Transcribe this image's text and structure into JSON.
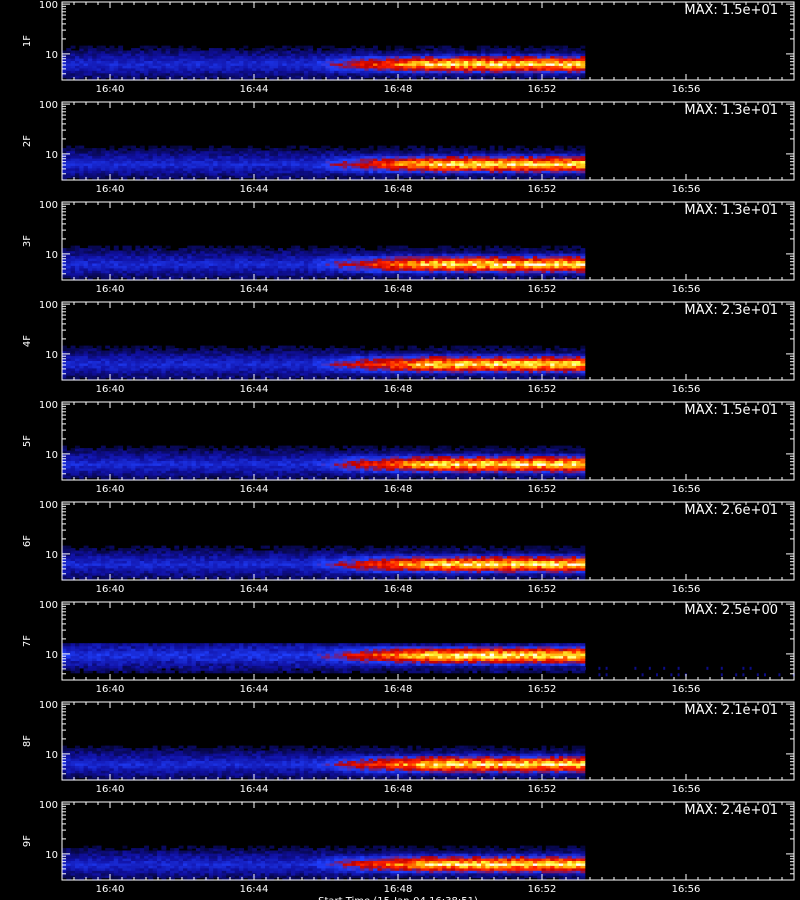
{
  "chart_data": {
    "type": "heatmap",
    "panel_count": 9,
    "x_axis": {
      "range_hhmm": [
        "16:38:40",
        "16:59:00"
      ],
      "tick_labels": [
        "16:40",
        "16:44",
        "16:48",
        "16:52",
        "16:56"
      ],
      "tick_values_hhmm": [
        "16:40",
        "16:44",
        "16:48",
        "16:52",
        "16:56"
      ],
      "bottom_label": "Start Time (15-Jan-04 16:38:51)"
    },
    "y_axis": {
      "scale": "log",
      "tick_labels": [
        "100",
        "10"
      ],
      "tick_values": [
        100,
        10
      ],
      "range": [
        3,
        110
      ]
    },
    "colorscale": [
      "#000000",
      "#1010a0",
      "#2040ff",
      "#c00000",
      "#ff2000",
      "#ffa000",
      "#ffff40",
      "#ffffff"
    ],
    "data_window": {
      "start": "16:38:40",
      "end": "16:53:10",
      "brightening_onset": "16:45:30",
      "energy_band": [
        4.5,
        8
      ]
    },
    "panels": [
      {
        "label": "1F",
        "max_text": "MAX: 1.5e+01",
        "max": 15.0,
        "band_center": 6
      },
      {
        "label": "2F",
        "max_text": "MAX: 1.3e+01",
        "max": 13.0,
        "band_center": 6
      },
      {
        "label": "3F",
        "max_text": "MAX: 1.3e+01",
        "max": 13.0,
        "band_center": 6
      },
      {
        "label": "4F",
        "max_text": "MAX: 2.3e+01",
        "max": 23.0,
        "band_center": 6
      },
      {
        "label": "5F",
        "max_text": "MAX: 1.5e+01",
        "max": 15.0,
        "band_center": 6
      },
      {
        "label": "6F",
        "max_text": "MAX: 2.6e+01",
        "max": 26.0,
        "band_center": 6
      },
      {
        "label": "7F",
        "max_text": "MAX: 2.5e+00",
        "max": 2.5,
        "band_center": 9
      },
      {
        "label": "8F",
        "max_text": "MAX: 2.1e+01",
        "max": 21.0,
        "band_center": 6
      },
      {
        "label": "9F",
        "max_text": "MAX: 2.4e+01",
        "max": 24.0,
        "band_center": 6
      }
    ]
  }
}
